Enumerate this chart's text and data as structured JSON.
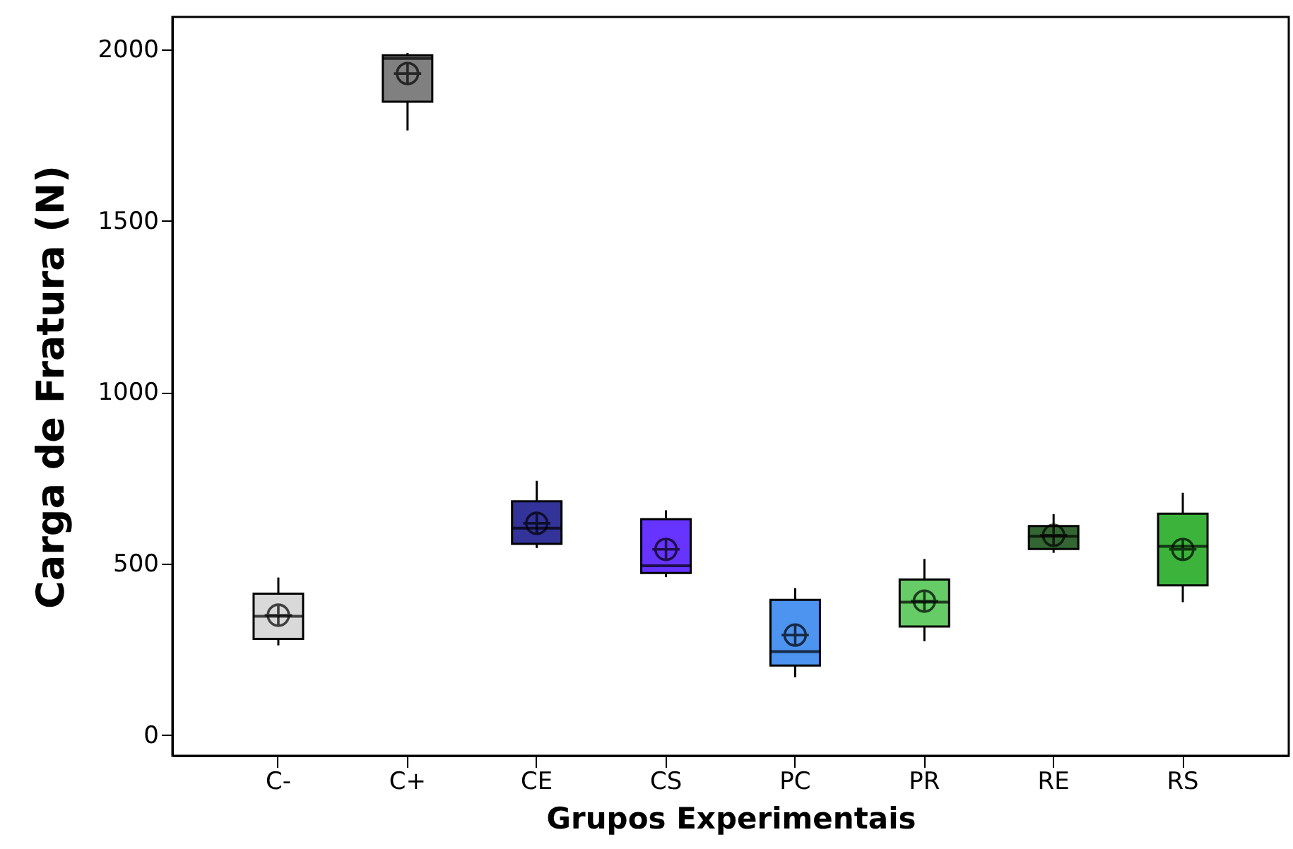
{
  "chart_data": {
    "type": "box",
    "xlabel": "Grupos Experimentais",
    "ylabel": "Carga de Fratura (N)",
    "categories": [
      "C-",
      "C+",
      "CE",
      "CS",
      "PC",
      "PR",
      "RE",
      "RS"
    ],
    "colors": [
      "#d9d9d9",
      "#808080",
      "#333399",
      "#6633ff",
      "#4d94f0",
      "#66cc66",
      "#336633",
      "#3cb43c"
    ],
    "boxes": [
      {
        "low": 262,
        "q1": 281,
        "median": 347,
        "q3": 413,
        "high": 460,
        "mean": 350
      },
      {
        "low": 1764,
        "q1": 1848,
        "median": 1974,
        "q3": 1983,
        "high": 1990,
        "mean": 1930
      },
      {
        "low": 546,
        "q1": 558,
        "median": 604,
        "q3": 682,
        "high": 742,
        "mean": 618
      },
      {
        "low": 461,
        "q1": 473,
        "median": 494,
        "q3": 630,
        "high": 656,
        "mean": 542
      },
      {
        "low": 169,
        "q1": 203,
        "median": 244,
        "q3": 395,
        "high": 429,
        "mean": 292
      },
      {
        "low": 274,
        "q1": 317,
        "median": 388,
        "q3": 454,
        "high": 514,
        "mean": 391
      },
      {
        "low": 532,
        "q1": 543,
        "median": 580,
        "q3": 610,
        "high": 645,
        "mean": 583
      },
      {
        "low": 388,
        "q1": 437,
        "median": 551,
        "q3": 646,
        "high": 707,
        "mean": 542
      }
    ],
    "ylim": [
      -60,
      2095
    ],
    "yticks": [
      0,
      500,
      1000,
      1500,
      2000
    ]
  }
}
